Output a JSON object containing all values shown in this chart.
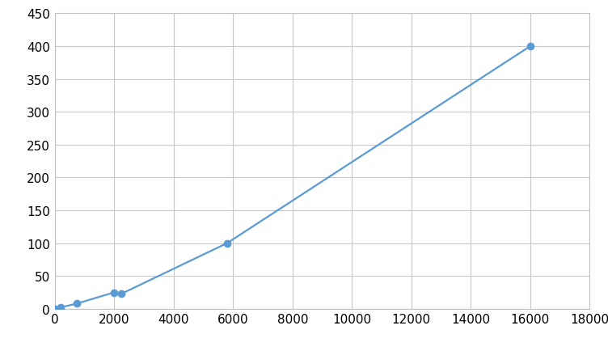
{
  "x": [
    0,
    188,
    750,
    2000,
    2250,
    5800,
    16000
  ],
  "y": [
    0,
    2,
    8,
    25,
    23,
    100,
    400
  ],
  "line_color": "#5b9bd5",
  "marker_color": "#5b9bd5",
  "marker_size": 6,
  "line_width": 1.6,
  "xlim": [
    0,
    18000
  ],
  "ylim": [
    0,
    450
  ],
  "xticks": [
    0,
    2000,
    4000,
    6000,
    8000,
    10000,
    12000,
    14000,
    16000,
    18000
  ],
  "yticks": [
    0,
    50,
    100,
    150,
    200,
    250,
    300,
    350,
    400,
    450
  ],
  "grid_color": "#c8c8c8",
  "background_color": "#ffffff",
  "tick_fontsize": 11,
  "spine_color": "#c0c0c0"
}
